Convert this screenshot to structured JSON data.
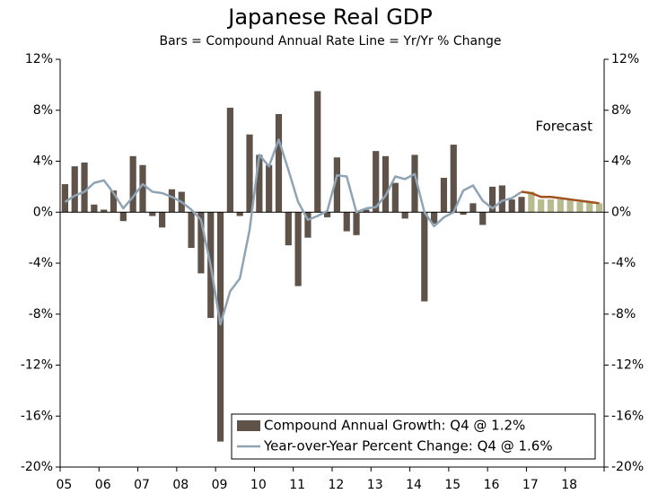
{
  "chart_data": {
    "type": "bar-line",
    "title": "Japanese Real GDP",
    "subtitle": "Bars = Compound Annual Rate     Line = Yr/Yr % Change",
    "annotation": "Forecast",
    "categories": [
      "05",
      null,
      null,
      null,
      "06",
      null,
      null,
      null,
      "07",
      null,
      null,
      null,
      "08",
      null,
      null,
      null,
      "09",
      null,
      null,
      null,
      "10",
      null,
      null,
      null,
      "11",
      null,
      null,
      null,
      "12",
      null,
      null,
      null,
      "13",
      null,
      null,
      null,
      "14",
      null,
      null,
      null,
      "15",
      null,
      null,
      null,
      "16",
      null,
      null,
      null,
      "17",
      null,
      null,
      null,
      "18",
      null,
      null,
      null
    ],
    "series": [
      {
        "name": "Compound Annual Growth: Q4 @ 1.2%",
        "type": "bar",
        "color": "#5f5249",
        "values": [
          2.2,
          3.6,
          3.9,
          0.6,
          0.2,
          1.7,
          -0.7,
          4.4,
          3.7,
          -0.3,
          -1.2,
          1.8,
          1.6,
          -2.8,
          -4.8,
          -8.3,
          -18.0,
          8.2,
          -0.3,
          6.1,
          4.5,
          3.7,
          7.7,
          -2.6,
          -5.8,
          -2.0,
          9.5,
          -0.4,
          4.3,
          -1.5,
          -1.8,
          0.2,
          4.8,
          4.4,
          2.3,
          -0.5,
          4.5,
          -7.0,
          -0.9,
          2.7,
          5.3,
          -0.2,
          0.7,
          -1.0,
          2.0,
          2.1,
          1.0,
          1.2,
          null,
          null,
          null,
          null,
          null,
          null,
          null,
          null
        ]
      },
      {
        "name": "Year-over-Year Percent Change: Q4 @ 1.6%",
        "type": "line",
        "color": "#8ea4b4",
        "values": [
          0.8,
          1.3,
          1.6,
          2.3,
          2.5,
          1.5,
          0.3,
          1.2,
          2.2,
          1.6,
          1.5,
          1.2,
          0.8,
          0.2,
          -0.6,
          -4.2,
          -8.8,
          -6.2,
          -5.2,
          -1.4,
          4.5,
          3.6,
          5.7,
          3.3,
          0.8,
          -0.6,
          -0.3,
          0.1,
          2.9,
          2.8,
          0.0,
          0.3,
          0.4,
          1.3,
          2.8,
          2.6,
          3.0,
          0.0,
          -1.1,
          -0.4,
          0.0,
          1.7,
          2.1,
          0.9,
          0.3,
          0.9,
          1.1,
          1.6,
          null,
          null,
          null,
          null,
          null,
          null,
          null,
          null
        ]
      },
      {
        "type": "bar",
        "color": "#b8bb8e",
        "values": [
          null,
          null,
          null,
          null,
          null,
          null,
          null,
          null,
          null,
          null,
          null,
          null,
          null,
          null,
          null,
          null,
          null,
          null,
          null,
          null,
          null,
          null,
          null,
          null,
          null,
          null,
          null,
          null,
          null,
          null,
          null,
          null,
          null,
          null,
          null,
          null,
          null,
          null,
          null,
          null,
          null,
          null,
          null,
          null,
          null,
          null,
          null,
          null,
          1.6,
          1.0,
          1.0,
          1.0,
          1.0,
          0.8,
          0.8,
          0.7
        ]
      },
      {
        "type": "line",
        "color": "#a0521e",
        "values": [
          null,
          null,
          null,
          null,
          null,
          null,
          null,
          null,
          null,
          null,
          null,
          null,
          null,
          null,
          null,
          null,
          null,
          null,
          null,
          null,
          null,
          null,
          null,
          null,
          null,
          null,
          null,
          null,
          null,
          null,
          null,
          null,
          null,
          null,
          null,
          null,
          null,
          null,
          null,
          null,
          null,
          null,
          null,
          null,
          null,
          null,
          null,
          1.6,
          1.5,
          1.2,
          1.2,
          1.1,
          1.0,
          0.9,
          0.8,
          0.7
        ]
      }
    ],
    "ylim": [
      -20,
      12
    ],
    "yticks": [
      {
        "value": -20,
        "label": "-20%"
      },
      {
        "value": -16,
        "label": "-16%"
      },
      {
        "value": -12,
        "label": "-12%"
      },
      {
        "value": -8,
        "label": "-8%"
      },
      {
        "value": -4,
        "label": "-4%"
      },
      {
        "value": 0,
        "label": "0%"
      },
      {
        "value": 4,
        "label": "4%"
      },
      {
        "value": 8,
        "label": "8%"
      },
      {
        "value": 12,
        "label": "12%"
      }
    ],
    "y2lim": [
      -20,
      12
    ],
    "y2ticks": [
      {
        "value": -20,
        "label": "-20%"
      },
      {
        "value": -16,
        "label": "-16%"
      },
      {
        "value": -12,
        "label": "-12%"
      },
      {
        "value": -8,
        "label": "-8%"
      },
      {
        "value": -4,
        "label": "-4%"
      },
      {
        "value": 0,
        "label": "0%"
      },
      {
        "value": 4,
        "label": "4%"
      },
      {
        "value": 8,
        "label": "8%"
      },
      {
        "value": 12,
        "label": "12%"
      }
    ],
    "legend": "lower right"
  }
}
